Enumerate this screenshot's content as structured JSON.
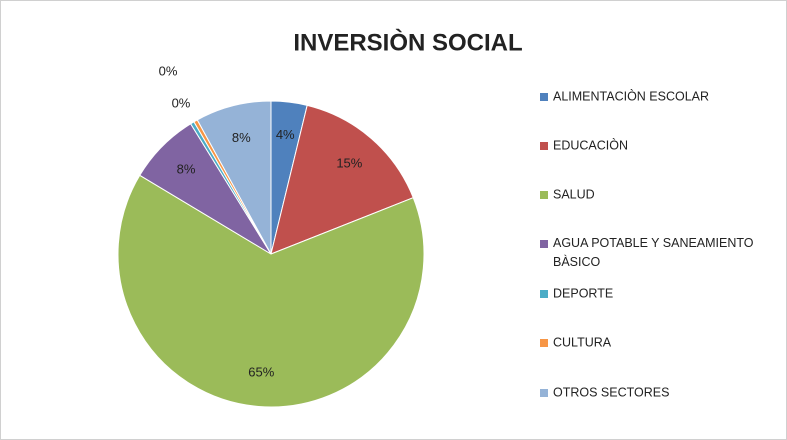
{
  "chart_data": {
    "type": "pie",
    "title": "INVERSIÒN SOCIAL",
    "categories": [
      "ALIMENTACIÒN ESCOLAR",
      "EDUCACIÒN",
      "SALUD",
      "AGUA POTABLE Y SANEAMIENTO BÀSICO",
      "DEPORTE",
      "CULTURA",
      "OTROS SECTORES"
    ],
    "values": [
      3.8,
      15.2,
      64.6,
      7.6,
      0.4,
      0.4,
      8.0
    ],
    "value_labels": [
      "4%",
      "15%",
      "65%",
      "8%",
      "0%",
      "0%",
      "8%"
    ],
    "colors": [
      "#4f81bd",
      "#c0504d",
      "#9bbb59",
      "#8064a2",
      "#4bacc6",
      "#f79646",
      "#95b3d7"
    ],
    "legend": "right"
  }
}
